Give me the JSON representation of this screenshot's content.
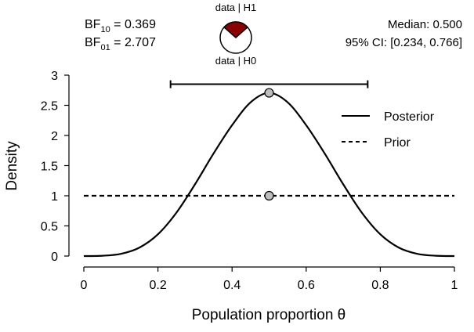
{
  "chart_data": {
    "type": "line",
    "xlabel": "Population proportion θ",
    "ylabel": "Density",
    "xlim": [
      0,
      1
    ],
    "ylim": [
      0,
      3
    ],
    "x_ticks": [
      "0",
      "0.2",
      "0.4",
      "0.6",
      "0.8",
      "1"
    ],
    "y_ticks": [
      "0",
      "0.5",
      "1",
      "1.5",
      "2",
      "2.5",
      "3"
    ],
    "series": [
      {
        "name": "Posterior",
        "style": "solid",
        "x": [
          0,
          0.05,
          0.1,
          0.15,
          0.2,
          0.25,
          0.3,
          0.35,
          0.4,
          0.45,
          0.5,
          0.55,
          0.6,
          0.65,
          0.7,
          0.75,
          0.8,
          0.85,
          0.9,
          0.95,
          1
        ],
        "y": [
          0,
          0.005,
          0.037,
          0.14,
          0.361,
          0.721,
          1.19,
          1.7,
          2.17,
          2.55,
          2.707,
          2.55,
          2.17,
          1.7,
          1.19,
          0.721,
          0.361,
          0.14,
          0.037,
          0.005,
          0
        ]
      },
      {
        "name": "Prior",
        "style": "dashed",
        "x": [
          0,
          1
        ],
        "y": [
          1,
          1
        ]
      }
    ],
    "points": [
      {
        "x": 0.5,
        "y": 2.707
      },
      {
        "x": 0.5,
        "y": 1
      }
    ],
    "credible_interval": {
      "lower": 0.234,
      "upper": 0.766,
      "y": 2.85
    },
    "legend_position": "right",
    "grid": false,
    "annotations": {
      "bf10_prefix": "BF",
      "bf10_sub": "10",
      "bf10_value": " = 0.369",
      "bf01_prefix": "BF",
      "bf01_sub": "01",
      "bf01_value": " = 2.707",
      "median_text": "Median: 0.500",
      "ci_text": "95% CI: [0.234, 0.766]",
      "pie_top_label": "data | H1",
      "pie_bottom_label": "data | H0",
      "pie_h1_fraction": 0.27,
      "pie_h1_color": "#8B0000",
      "pie_h0_color": "#ffffff"
    }
  }
}
